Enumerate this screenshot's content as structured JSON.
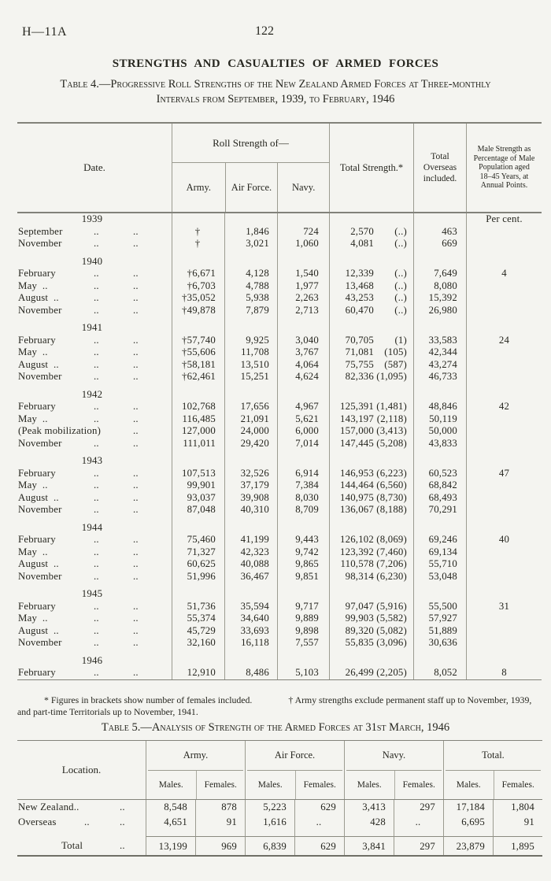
{
  "page": {
    "doc_ref": "H—11A",
    "page_number": "122",
    "title": "STRENGTHS AND CASUALTIES OF ARMED FORCES"
  },
  "table4": {
    "caption": "Table 4.—Progressive Roll Strengths of the New Zealand Armed Forces at Three-monthly Intervals from September, 1939, to February, 1946",
    "leader": "..",
    "header": {
      "date": "Date.",
      "roll_strength": "Roll Strength of—",
      "army": "Army.",
      "air_force": "Air Force.",
      "navy": "Navy.",
      "total_strength": "Total Strength.*",
      "total_overseas": "Total Overseas included.",
      "male_pct": "Male Strength as Percentage of Male Population aged 18–45 Years, at Annual Points."
    },
    "percent_label": "Per cent.",
    "groups": [
      {
        "year": "1939",
        "rows": [
          {
            "date": "September",
            "leaders": [
              1,
              2
            ],
            "army": "†",
            "air": "1,846",
            "navy": "724",
            "total": "2,570",
            "females": "(..)",
            "overseas": "463",
            "pct": ""
          },
          {
            "date": "November",
            "leaders": [
              1,
              2
            ],
            "army": "†",
            "air": "3,021",
            "navy": "1,060",
            "total": "4,081",
            "females": "(..)",
            "overseas": "669",
            "pct": ""
          }
        ]
      },
      {
        "year": "1940",
        "rows": [
          {
            "date": "February",
            "leaders": [
              1,
              2
            ],
            "army": "†6,671",
            "air": "4,128",
            "navy": "1,540",
            "total": "12,339",
            "females": "(..)",
            "overseas": "7,649",
            "pct": "4"
          },
          {
            "date": "May  ..",
            "leaders": [
              1,
              2
            ],
            "army": "†6,703",
            "air": "4,788",
            "navy": "1,977",
            "total": "13,468",
            "females": "(..)",
            "overseas": "8,080",
            "pct": ""
          },
          {
            "date": "August  ..",
            "leaders": [
              1,
              2
            ],
            "army": "†35,052",
            "air": "5,938",
            "navy": "2,263",
            "total": "43,253",
            "females": "(..)",
            "overseas": "15,392",
            "pct": ""
          },
          {
            "date": "November",
            "leaders": [
              1,
              2
            ],
            "army": "†49,878",
            "air": "7,879",
            "navy": "2,713",
            "total": "60,470",
            "females": "(..)",
            "overseas": "26,980",
            "pct": ""
          }
        ]
      },
      {
        "year": "1941",
        "rows": [
          {
            "date": "February",
            "leaders": [
              1,
              2
            ],
            "army": "†57,740",
            "air": "9,925",
            "navy": "3,040",
            "total": "70,705",
            "females": "(1)",
            "overseas": "33,583",
            "pct": "24"
          },
          {
            "date": "May  ..",
            "leaders": [
              1,
              2
            ],
            "army": "†55,606",
            "air": "11,708",
            "navy": "3,767",
            "total": "71,081",
            "females": "(105)",
            "overseas": "42,344",
            "pct": ""
          },
          {
            "date": "August  ..",
            "leaders": [
              1,
              2
            ],
            "army": "†58,181",
            "air": "13,510",
            "navy": "4,064",
            "total": "75,755",
            "females": "(587)",
            "overseas": "43,274",
            "pct": ""
          },
          {
            "date": "November",
            "leaders": [
              1,
              2
            ],
            "army": "†62,461",
            "air": "15,251",
            "navy": "4,624",
            "total": "82,336",
            "females": "(1,095)",
            "overseas": "46,733",
            "pct": ""
          }
        ]
      },
      {
        "year": "1942",
        "rows": [
          {
            "date": "February",
            "leaders": [
              1,
              2
            ],
            "army": "102,768",
            "air": "17,656",
            "navy": "4,967",
            "total": "125,391",
            "females": "(1,481)",
            "overseas": "48,846",
            "pct": "42"
          },
          {
            "date": "May  ..",
            "leaders": [
              1,
              2
            ],
            "army": "116,485",
            "air": "21,091",
            "navy": "5,621",
            "total": "143,197",
            "females": "(2,118)",
            "overseas": "50,119",
            "pct": ""
          },
          {
            "date": "(Peak mobilization)",
            "leaders": [
              2
            ],
            "army": "127,000",
            "air": "24,000",
            "navy": "6,000",
            "total": "157,000",
            "females": "(3,413)",
            "overseas": "50,000",
            "pct": ""
          },
          {
            "date": "November",
            "leaders": [
              1,
              2
            ],
            "army": "111,011",
            "air": "29,420",
            "navy": "7,014",
            "total": "147,445",
            "females": "(5,208)",
            "overseas": "43,833",
            "pct": ""
          }
        ]
      },
      {
        "year": "1943",
        "rows": [
          {
            "date": "February",
            "leaders": [
              1,
              2
            ],
            "army": "107,513",
            "air": "32,526",
            "navy": "6,914",
            "total": "146,953",
            "females": "(6,223)",
            "overseas": "60,523",
            "pct": "47"
          },
          {
            "date": "May  ..",
            "leaders": [
              1,
              2
            ],
            "army": "99,901",
            "air": "37,179",
            "navy": "7,384",
            "total": "144,464",
            "females": "(6,560)",
            "overseas": "68,842",
            "pct": ""
          },
          {
            "date": "August  ..",
            "leaders": [
              1,
              2
            ],
            "army": "93,037",
            "air": "39,908",
            "navy": "8,030",
            "total": "140,975",
            "females": "(8,730)",
            "overseas": "68,493",
            "pct": ""
          },
          {
            "date": "November",
            "leaders": [
              1,
              2
            ],
            "army": "87,048",
            "air": "40,310",
            "navy": "8,709",
            "total": "136,067",
            "females": "(8,188)",
            "overseas": "70,291",
            "pct": ""
          }
        ]
      },
      {
        "year": "1944",
        "rows": [
          {
            "date": "February",
            "leaders": [
              1,
              2
            ],
            "army": "75,460",
            "air": "41,199",
            "navy": "9,443",
            "total": "126,102",
            "females": "(8,069)",
            "overseas": "69,246",
            "pct": "40"
          },
          {
            "date": "May  ..",
            "leaders": [
              1,
              2
            ],
            "army": "71,327",
            "air": "42,323",
            "navy": "9,742",
            "total": "123,392",
            "females": "(7,460)",
            "overseas": "69,134",
            "pct": ""
          },
          {
            "date": "August  ..",
            "leaders": [
              1,
              2
            ],
            "army": "60,625",
            "air": "40,088",
            "navy": "9,865",
            "total": "110,578",
            "females": "(7,206)",
            "overseas": "55,710",
            "pct": ""
          },
          {
            "date": "November",
            "leaders": [
              1,
              2
            ],
            "army": "51,996",
            "air": "36,467",
            "navy": "9,851",
            "total": "98,314",
            "females": "(6,230)",
            "overseas": "53,048",
            "pct": ""
          }
        ]
      },
      {
        "year": "1945",
        "rows": [
          {
            "date": "February",
            "leaders": [
              1,
              2
            ],
            "army": "51,736",
            "air": "35,594",
            "navy": "9,717",
            "total": "97,047",
            "females": "(5,916)",
            "overseas": "55,500",
            "pct": "31"
          },
          {
            "date": "May  ..",
            "leaders": [
              1,
              2
            ],
            "army": "55,374",
            "air": "34,640",
            "navy": "9,889",
            "total": "99,903",
            "females": "(5,582)",
            "overseas": "57,927",
            "pct": ""
          },
          {
            "date": "August  ..",
            "leaders": [
              1,
              2
            ],
            "army": "45,729",
            "air": "33,693",
            "navy": "9,898",
            "total": "89,320",
            "females": "(5,082)",
            "overseas": "51,889",
            "pct": ""
          },
          {
            "date": "November",
            "leaders": [
              1,
              2
            ],
            "army": "32,160",
            "air": "16,118",
            "navy": "7,557",
            "total": "55,835",
            "females": "(3,096)",
            "overseas": "30,636",
            "pct": ""
          }
        ]
      },
      {
        "year": "1946",
        "rows": [
          {
            "date": "February",
            "leaders": [
              1,
              2
            ],
            "army": "12,910",
            "air": "8,486",
            "navy": "5,103",
            "total": "26,499",
            "females": "(2,205)",
            "overseas": "8,052",
            "pct": "8"
          }
        ]
      }
    ],
    "footnotes": {
      "star": "* Figures in brackets show number of females included.",
      "dagger": "† Army strengths exclude permanent staff up to November, 1939, and part-time Territorials up to November, 1941."
    }
  },
  "table5": {
    "caption": "Table 5.—Analysis of Strength of the Armed Forces at 31st March, 1946",
    "leader": "..",
    "header": {
      "location": "Location.",
      "groups": [
        {
          "label": "Army."
        },
        {
          "label": "Air Force."
        },
        {
          "label": "Navy."
        },
        {
          "label": "Total."
        }
      ],
      "males": "Males.",
      "females": "Females."
    },
    "rows": [
      {
        "label": "New Zealand..",
        "leaders": [
          2
        ],
        "values": [
          "8,548",
          "878",
          "5,223",
          "629",
          "3,413",
          "297",
          "17,184",
          "1,804"
        ]
      },
      {
        "label": "Overseas",
        "leaders": [
          1,
          2
        ],
        "values": [
          "4,651",
          "91",
          "1,616",
          "..",
          "428",
          "..",
          "6,695",
          "91"
        ]
      }
    ],
    "total_row": {
      "label": "Total",
      "leaders": [
        2
      ],
      "indent": true,
      "values": [
        "13,199",
        "969",
        "6,839",
        "629",
        "3,841",
        "297",
        "23,879",
        "1,895"
      ]
    }
  }
}
